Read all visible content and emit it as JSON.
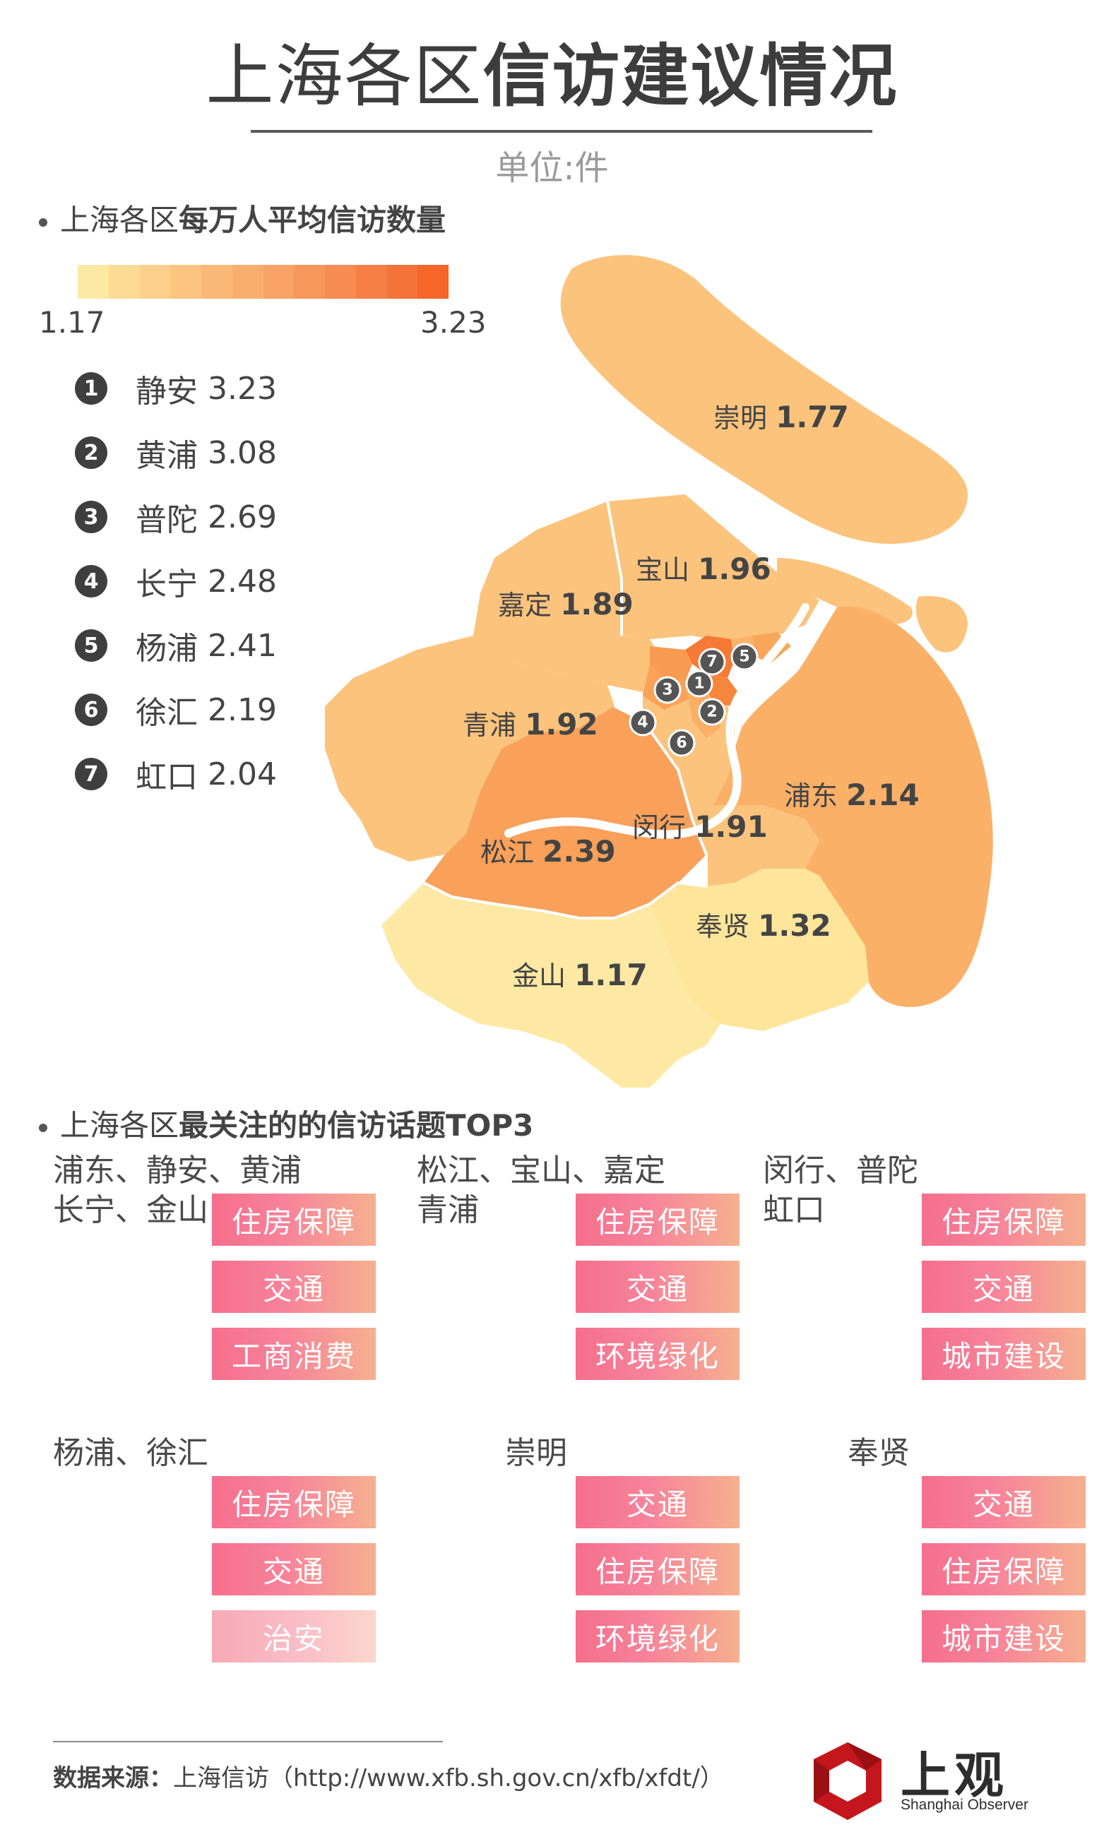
{
  "title": {
    "light": "上海各区",
    "bold": "信访建议情况"
  },
  "unit": "单位:件",
  "section1": {
    "light": "上海各区",
    "bold": "每万人平均信访数量"
  },
  "legend": {
    "min": "1.17",
    "max": "3.23",
    "colors": [
      "#fde9a3",
      "#fcdc95",
      "#fcd08a",
      "#fbc47f",
      "#fbb977",
      "#faae6e",
      "#f9a366",
      "#f8975c",
      "#f78b52",
      "#f67e47",
      "#f57239",
      "#f56628"
    ]
  },
  "rankings": [
    {
      "rank": "1",
      "name": "静安",
      "value": "3.23"
    },
    {
      "rank": "2",
      "name": "黄浦",
      "value": "3.08"
    },
    {
      "rank": "3",
      "name": "普陀",
      "value": "2.69"
    },
    {
      "rank": "4",
      "name": "长宁",
      "value": "2.48"
    },
    {
      "rank": "5",
      "name": "杨浦",
      "value": "2.41"
    },
    {
      "rank": "6",
      "name": "徐汇",
      "value": "2.19"
    },
    {
      "rank": "7",
      "name": "虹口",
      "value": "2.04"
    }
  ],
  "map": {
    "districts": [
      {
        "name": "崇明",
        "value": "1.77",
        "color": "#fbc37c"
      },
      {
        "name": "宝山",
        "value": "1.96",
        "color": "#fbc37c"
      },
      {
        "name": "嘉定",
        "value": "1.89",
        "color": "#fbc37c"
      },
      {
        "name": "青浦",
        "value": "1.92",
        "color": "#fbc37c"
      },
      {
        "name": "浦东",
        "value": "2.14",
        "color": "#fbb068"
      },
      {
        "name": "闵行",
        "value": "1.91",
        "color": "#fbc37c"
      },
      {
        "name": "松江",
        "value": "2.39",
        "color": "#f9a05a"
      },
      {
        "name": "奉贤",
        "value": "1.32",
        "color": "#fde59a"
      },
      {
        "name": "金山",
        "value": "1.17",
        "color": "#fde9a3"
      }
    ],
    "badges": [
      "1",
      "2",
      "3",
      "4",
      "5",
      "6",
      "7"
    ],
    "urban_colors": {
      "jingan": "#f57a35",
      "huangpu": "#f6853d",
      "putuo": "#f89a50",
      "changning": "#f9a258",
      "yangpu": "#f9a65b",
      "xuhui": "#faae66",
      "hongkou": "#fab36c"
    }
  },
  "section2": {
    "light": "上海各区",
    "bold": "最关注的的信访话题TOP3"
  },
  "topic_groups": [
    {
      "name": "浦东、静安、黄浦\n长宁、金山",
      "tags": [
        "住房保障",
        "交通",
        "工商消费"
      ]
    },
    {
      "name": "松江、宝山、嘉定\n青浦",
      "tags": [
        "住房保障",
        "交通",
        "环境绿化"
      ]
    },
    {
      "name": "闵行、普陀\n虹口",
      "tags": [
        "住房保障",
        "交通",
        "城市建设"
      ]
    },
    {
      "name": "杨浦、徐汇",
      "tags": [
        "住房保障",
        "交通",
        "治安"
      ]
    },
    {
      "name": "崇明",
      "tags": [
        "交通",
        "住房保障",
        "环境绿化"
      ]
    },
    {
      "name": "奉贤",
      "tags": [
        "交通",
        "住房保障",
        "城市建设"
      ]
    }
  ],
  "footer": {
    "label": "数据来源：",
    "source": "上海信访（http://www.xfb.sh.gov.cn/xfb/xfdt/）"
  },
  "brand": {
    "name": "上观",
    "sub": "Shanghai Observer"
  }
}
